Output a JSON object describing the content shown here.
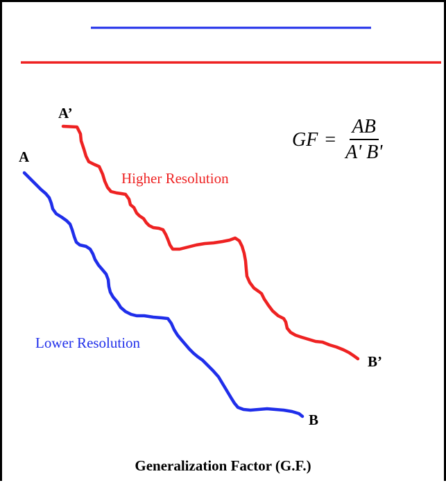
{
  "colors": {
    "lower": "#1f2eea",
    "higher": "#ee2222",
    "text": "#000000"
  },
  "points": {
    "a": "A",
    "a_prime": "A’",
    "b": "B",
    "b_prime": "B’"
  },
  "curves": {
    "higher_label": "Higher Resolution",
    "lower_label": "Lower Resolution"
  },
  "formula": {
    "lhs": "GF",
    "equals": "=",
    "numerator": "AB",
    "denominator": "A' B'"
  },
  "caption": "Generalization Factor (G.F.)"
}
